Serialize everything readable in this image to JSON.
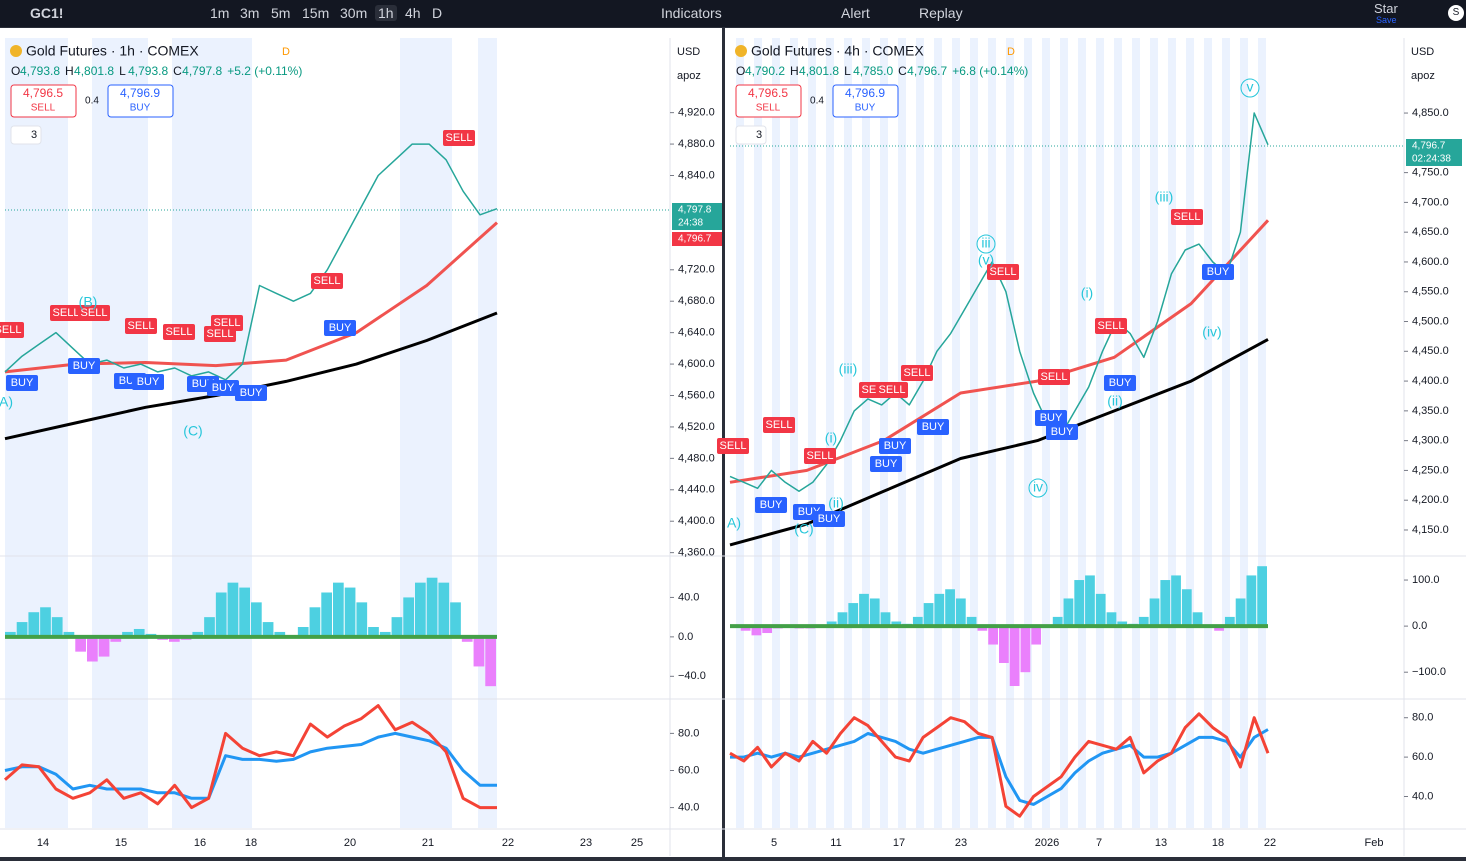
{
  "toolbar": {
    "symbol": "GC1!",
    "intervals": [
      "1m",
      "3m",
      "5m",
      "15m",
      "30m",
      "1h",
      "4h",
      "D"
    ],
    "indicators": "Indicators",
    "alert": "Alert",
    "replay": "Replay",
    "user": "Star",
    "save": "Save",
    "avatar": "S"
  },
  "panels": [
    {
      "title": "Gold Futures · 1h · COMEX",
      "session": "D",
      "ohlc": [
        {
          "label": "O",
          "value": "4,793.8"
        },
        {
          "label": "H",
          "value": "4,801.8"
        },
        {
          "label": "L",
          "value": "4,793.8"
        },
        {
          "label": "C",
          "value": "4,797.8"
        }
      ],
      "change": "+5.2 (+0.11%)",
      "sell_price": "4,796.5",
      "sell": "SELL",
      "spread": "0.4",
      "buy_price": "4,796.9",
      "buy": "BUY",
      "indicator_count": "3",
      "currency": "USD",
      "unit": "apoz",
      "price_tags": [
        "4,797.8",
        "24:38",
        "4,796.7"
      ],
      "price": {
        "ylim": [
          4357,
          5015
        ],
        "yticks": [
          {
            "value": 4920,
            "label": "4,920.0"
          },
          {
            "value": 4880,
            "label": "4,880.0"
          },
          {
            "value": 4840,
            "label": "4,840.0"
          },
          {
            "value": 4720,
            "label": "4,720.0"
          },
          {
            "value": 4680,
            "label": "4,680.0"
          },
          {
            "value": 4640,
            "label": "4,640.0"
          },
          {
            "value": 4600,
            "label": "4,600.0"
          },
          {
            "value": 4560,
            "label": "4,560.0"
          },
          {
            "value": 4520,
            "label": "4,520.0"
          },
          {
            "value": 4480,
            "label": "4,480.0"
          },
          {
            "value": 4440,
            "label": "4,440.0"
          },
          {
            "value": 4400,
            "label": "4,400.0"
          },
          {
            "value": 4360,
            "label": "4,360.0"
          }
        ],
        "close": [
          4590,
          4610,
          4625,
          4640,
          4620,
          4600,
          4605,
          4595,
          4600,
          4590,
          4595,
          4585,
          4590,
          4580,
          4600,
          4700,
          4690,
          4680,
          4690,
          4720,
          4760,
          4800,
          4840,
          4860,
          4880,
          4880,
          4860,
          4820,
          4790,
          4797.8
        ],
        "ma_fast": [
          4590,
          4600,
          4602,
          4598,
          4605,
          4640,
          4700,
          4780
        ],
        "ma_slow": [
          4505,
          4525,
          4545,
          4560,
          4578,
          4600,
          4630,
          4665
        ]
      },
      "sell_labels": [
        "SELL",
        "SELL",
        "SELL",
        "SELL",
        "SELL",
        "SELL",
        "SELL",
        "SELL",
        "SELL"
      ],
      "buy_labels": [
        "BUY",
        "BUY",
        "BUY",
        "BUY",
        "BUY",
        "BUY",
        "BUY",
        "BUY"
      ],
      "wave_labels": [
        "(B)",
        "(C)",
        "A)"
      ],
      "osc": {
        "ylim": [
          -62,
          81
        ],
        "yticks": [
          {
            "value": 40,
            "label": "40.0"
          },
          {
            "value": 0,
            "label": "0.0"
          },
          {
            "value": -40,
            "label": "−40.0"
          }
        ],
        "values": [
          5,
          15,
          25,
          30,
          20,
          5,
          -15,
          -25,
          -20,
          -5,
          5,
          8,
          3,
          -3,
          -5,
          -3,
          5,
          20,
          45,
          55,
          50,
          35,
          15,
          5,
          0,
          10,
          30,
          45,
          55,
          50,
          35,
          10,
          5,
          20,
          40,
          55,
          60,
          55,
          35,
          -5,
          -30,
          -50
        ]
      },
      "rsi": {
        "ylim": [
          29,
          98
        ],
        "yticks": [
          {
            "value": 80,
            "label": "80.0"
          },
          {
            "value": 60,
            "label": "60.0"
          },
          {
            "value": 40,
            "label": "40.0"
          }
        ],
        "slow": [
          60,
          62,
          62,
          58,
          50,
          52,
          50,
          50,
          50,
          48,
          48,
          45,
          45,
          68,
          66,
          66,
          65,
          66,
          70,
          72,
          73,
          74,
          78,
          80,
          78,
          76,
          72,
          60,
          52,
          52
        ],
        "fast": [
          55,
          63,
          62,
          50,
          45,
          48,
          55,
          45,
          48,
          42,
          52,
          40,
          45,
          80,
          72,
          68,
          70,
          68,
          85,
          78,
          84,
          88,
          95,
          82,
          86,
          80,
          70,
          45,
          40,
          40
        ]
      },
      "time_labels": [
        "14",
        "15",
        "16",
        "18",
        "20",
        "21",
        "22",
        "23",
        "25"
      ]
    },
    {
      "title": "Gold Futures · 4h · COMEX",
      "session": "D",
      "ohlc": [
        {
          "label": "O",
          "value": "4,790.2"
        },
        {
          "label": "H",
          "value": "4,801.8"
        },
        {
          "label": "L",
          "value": "4,785.0"
        },
        {
          "label": "C",
          "value": "4,796.7"
        }
      ],
      "change": "+6.8 (+0.14%)",
      "sell_price": "4,796.5",
      "sell": "SELL",
      "spread": "0.4",
      "buy_price": "4,796.9",
      "buy": "BUY",
      "indicator_count": "3",
      "currency": "USD",
      "unit": "apoz",
      "price_tags": [
        "4,796.7",
        "02:24:38"
      ],
      "price": {
        "ylim": [
          4108,
          4976
        ],
        "yticks": [
          {
            "value": 4850,
            "label": "4,850.0"
          },
          {
            "value": 4750,
            "label": "4,750.0"
          },
          {
            "value": 4700,
            "label": "4,700.0"
          },
          {
            "value": 4650,
            "label": "4,650.0"
          },
          {
            "value": 4600,
            "label": "4,600.0"
          },
          {
            "value": 4550,
            "label": "4,550.0"
          },
          {
            "value": 4500,
            "label": "4,500.0"
          },
          {
            "value": 4450,
            "label": "4,450.0"
          },
          {
            "value": 4400,
            "label": "4,400.0"
          },
          {
            "value": 4350,
            "label": "4,350.0"
          },
          {
            "value": 4300,
            "label": "4,300.0"
          },
          {
            "value": 4250,
            "label": "4,250.0"
          },
          {
            "value": 4200,
            "label": "4,200.0"
          },
          {
            "value": 4150,
            "label": "4,150.0"
          }
        ],
        "close": [
          4240,
          4230,
          4220,
          4250,
          4230,
          4215,
          4230,
          4260,
          4300,
          4350,
          4370,
          4360,
          4380,
          4360,
          4400,
          4450,
          4480,
          4520,
          4560,
          4600,
          4550,
          4450,
          4380,
          4330,
          4310,
          4350,
          4390,
          4450,
          4500,
          4480,
          4440,
          4500,
          4580,
          4620,
          4630,
          4600,
          4580,
          4650,
          4850,
          4796.7
        ],
        "ma_fast": [
          4230,
          4250,
          4300,
          4380,
          4400,
          4440,
          4530,
          4670
        ],
        "ma_slow": [
          4125,
          4160,
          4215,
          4270,
          4300,
          4350,
          4400,
          4470
        ]
      },
      "sell_labels": [
        "SELL",
        "SELL",
        "SELL",
        "SELL",
        "SELL",
        "SELL",
        "SELL",
        "SELL",
        "SELL",
        "SELL"
      ],
      "buy_labels": [
        "BUY",
        "BUY",
        "BUY",
        "BUY",
        "BUY",
        "BUY",
        "BUY",
        "BUY",
        "BUY",
        "BUY"
      ],
      "wave_labels": [
        "(i)",
        "(ii)",
        "(iii)",
        "(C)",
        "A)",
        "iii",
        "(v)",
        "(i)",
        "(ii)",
        "iv",
        "(iii)",
        "(iv)",
        "v"
      ],
      "osc": {
        "ylim": [
          -156,
          150
        ],
        "yticks": [
          {
            "value": 100,
            "label": "100.0"
          },
          {
            "value": 0,
            "label": "0.0"
          },
          {
            "value": -100,
            "label": "−100.0"
          }
        ],
        "values": [
          0,
          -10,
          -20,
          -15,
          -5,
          0,
          -5,
          -5,
          0,
          10,
          30,
          50,
          70,
          60,
          30,
          10,
          5,
          20,
          50,
          70,
          80,
          60,
          20,
          -10,
          -40,
          -80,
          -130,
          -100,
          -40,
          0,
          20,
          60,
          100,
          110,
          70,
          30,
          10,
          5,
          20,
          60,
          100,
          110,
          80,
          30,
          0,
          -10,
          20,
          60,
          110,
          130
        ]
      },
      "rsi": {
        "ylim": [
          24,
          89
        ],
        "yticks": [
          {
            "value": 80,
            "label": "80.0"
          },
          {
            "value": 60,
            "label": "60.0"
          },
          {
            "value": 40,
            "label": "40.0"
          }
        ],
        "slow": [
          60,
          60,
          62,
          60,
          62,
          60,
          62,
          64,
          66,
          68,
          72,
          70,
          68,
          64,
          62,
          64,
          66,
          68,
          70,
          70,
          50,
          38,
          36,
          40,
          44,
          52,
          58,
          62,
          64,
          66,
          60,
          60,
          62,
          66,
          70,
          70,
          68,
          60,
          70,
          74
        ],
        "fast": [
          62,
          58,
          65,
          55,
          62,
          58,
          68,
          62,
          72,
          80,
          76,
          68,
          60,
          58,
          70,
          75,
          80,
          78,
          72,
          70,
          35,
          30,
          40,
          45,
          50,
          60,
          68,
          66,
          64,
          70,
          52,
          58,
          62,
          75,
          82,
          75,
          70,
          55,
          80,
          62
        ]
      },
      "time_labels": [
        "5",
        "11",
        "17",
        "23",
        "2026",
        "7",
        "13",
        "18",
        "22",
        "Feb"
      ]
    }
  ]
}
